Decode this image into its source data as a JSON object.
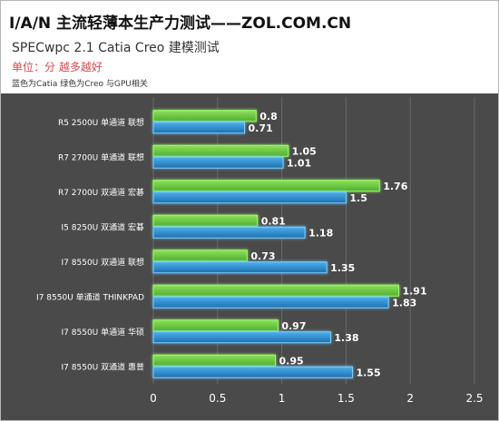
{
  "header": {
    "title": "I/A/N 主流轻薄本生产力测试——ZOL.COM.CN",
    "subtitle": "SPECwpc 2.1 Catia Creo 建模测试",
    "unit": "单位：分 越多越好",
    "note": "蓝色为Catia 绿色为Creo 与GPU相关"
  },
  "colors": {
    "creo": "#6cc442",
    "catia": "#2e8fd0",
    "background": "#4a4a4a",
    "grid": "#6a6a6a",
    "text": "#ffffff"
  },
  "chart_data": {
    "type": "bar",
    "orientation": "horizontal",
    "title": "I/A/N 主流轻薄本生产力测试——ZOL.COM.CN",
    "subtitle": "SPECwpc 2.1 Catia Creo 建模测试",
    "categories": [
      "R5 2500U 单通道 联想",
      "R7 2700U 单通道 联想",
      "R7 2700U 双通道 宏碁",
      "I5 8250U 双通道 宏碁",
      "I7 8550U 双通道 联想",
      "I7 8550U 单通道 THINKPAD",
      "I7 8550U 单通道 华硕",
      "I7 8550U 双通道 惠普"
    ],
    "series": [
      {
        "key": "creo",
        "values": [
          0.8,
          1.05,
          1.76,
          0.81,
          0.73,
          1.91,
          0.97,
          0.95
        ]
      },
      {
        "key": "catia",
        "values": [
          0.71,
          1.01,
          1.5,
          1.18,
          1.35,
          1.83,
          1.38,
          1.55
        ]
      }
    ],
    "value_labels": {
      "creo": [
        "0.8",
        "1.05",
        "1.76",
        "0.81",
        "0.73",
        "1.91",
        "0.97",
        "0.95"
      ],
      "catia": [
        "0.71",
        "1.01",
        "1.5",
        "1.18",
        "1.35",
        "1.83",
        "1.38",
        "1.55"
      ]
    },
    "xlim": [
      0,
      2.5
    ],
    "xticks": [
      0,
      0.5,
      1,
      1.5,
      2,
      2.5
    ],
    "xtick_labels": [
      "0",
      "0.5",
      "1",
      "1.5",
      "2",
      "2.5"
    ],
    "grid": true,
    "legend": "none"
  }
}
